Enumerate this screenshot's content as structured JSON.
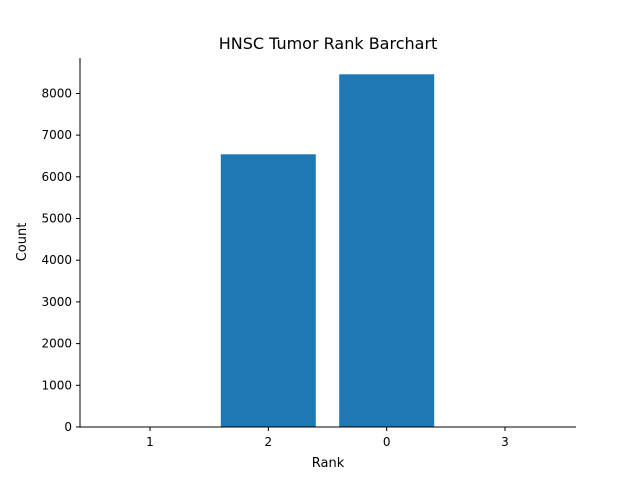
{
  "chart_data": {
    "type": "bar",
    "title": "HNSC Tumor Rank Barchart",
    "xlabel": "Rank",
    "ylabel": "Count",
    "categories": [
      "1",
      "2",
      "0",
      "3"
    ],
    "values": [
      0,
      6540,
      8460,
      0
    ],
    "ylim": [
      0,
      8850
    ],
    "yticks": [
      0,
      1000,
      2000,
      3000,
      4000,
      5000,
      6000,
      7000,
      8000
    ],
    "bar_color": "#1f77b4",
    "grid": false,
    "legend": "none"
  }
}
